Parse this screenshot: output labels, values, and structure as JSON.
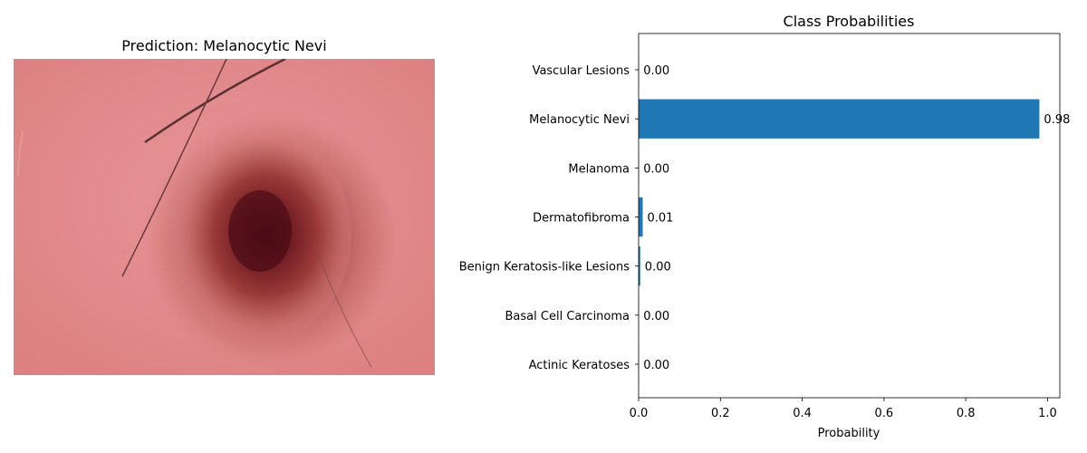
{
  "image_panel": {
    "title": "Prediction: Melanocytic Nevi",
    "image_description": "dermoscopy image of pigmented skin lesion with hairs"
  },
  "colors": {
    "bar": "#1f77b4",
    "skin": "#e38a8e",
    "lesion": "#7a1a22",
    "hair": "#5a3030"
  },
  "chart_data": {
    "type": "bar",
    "orientation": "horizontal",
    "title": "Class Probabilities",
    "xlabel": "Probability",
    "ylabel": "",
    "categories": [
      "Actinic Keratoses",
      "Basal Cell Carcinoma",
      "Benign Keratosis-like Lesions",
      "Dermatofibroma",
      "Melanoma",
      "Melanocytic Nevi",
      "Vascular Lesions"
    ],
    "values": [
      0.0005,
      0.0005,
      0.004,
      0.01,
      0.0005,
      0.98,
      0.0005
    ],
    "value_labels": [
      "0.00",
      "0.00",
      "0.00",
      "0.01",
      "0.00",
      "0.98",
      "0.00"
    ],
    "xlim": [
      0,
      1.03
    ],
    "xticks": [
      0.0,
      0.2,
      0.4,
      0.6,
      0.8,
      1.0
    ],
    "xtick_labels": [
      "0.0",
      "0.2",
      "0.4",
      "0.6",
      "0.8",
      "1.0"
    ],
    "grid": false
  }
}
